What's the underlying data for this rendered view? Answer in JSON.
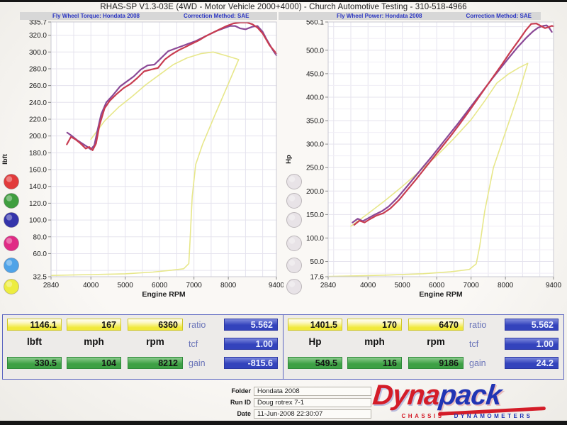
{
  "title": "RHAS-SP V1.3-03E  (4WD - Motor Vehicle 2000+4000) - Church Automotive Testing - 310-518-4966",
  "colors": {
    "header_text": "#2a35c2",
    "table_border": "#5a64c0",
    "box_yellow": "#f1e93a",
    "box_green": "#3da044",
    "box_blue": "#3343bc",
    "box_blue_text": "#eef1ff",
    "param_label": "#6a74b8",
    "logo_red": "#d41c28",
    "logo_blue": "#2134b4"
  },
  "chart_data": [
    {
      "type": "line",
      "panel": "torque",
      "header_title": "Fly Wheel Torque: Hondata 2008",
      "header_method": "Correction Method: SAE",
      "xlabel": "Engine RPM",
      "ylabel": "lbft",
      "xlim": [
        2840,
        9400
      ],
      "ylim": [
        32.5,
        335.7
      ],
      "x_ticks": [
        "2840",
        "4000",
        "5000",
        "6000",
        "7000",
        "8000",
        "9400"
      ],
      "y_ticks": [
        "335.7",
        "320.0",
        "300.0",
        "280.0",
        "260.0",
        "240.0",
        "220.0",
        "200.0",
        "180.0",
        "160.0",
        "140.0",
        "120.0",
        "100.0",
        "80.0",
        "60.0",
        "32.5"
      ],
      "grid": {
        "v_step": 500,
        "h_major": 20,
        "h_minor": 0
      },
      "legend_dots": [
        "#e23b3b",
        "#3f9e3f",
        "#3434ab",
        "#e02b85",
        "#4fa3e8",
        "#eded3f"
      ],
      "series": [
        {
          "name": "aux-channel-torque-yellow",
          "color": "#e7e78a",
          "width": 1.6,
          "points": [
            [
              4000,
              196
            ],
            [
              4400,
              218
            ],
            [
              4800,
              234
            ],
            [
              5200,
              247
            ],
            [
              5600,
              261
            ],
            [
              6000,
              273
            ],
            [
              6400,
              285
            ],
            [
              6800,
              293
            ],
            [
              7200,
              298
            ],
            [
              7560,
              300
            ],
            [
              7900,
              296
            ],
            [
              8150,
              293
            ],
            [
              8300,
              291
            ],
            [
              8000,
              262
            ],
            [
              7600,
              224
            ],
            [
              7250,
              190
            ],
            [
              7050,
              166
            ],
            [
              6950,
              128
            ],
            [
              6890,
              78
            ],
            [
              6850,
              48
            ],
            [
              6700,
              42
            ],
            [
              6300,
              40
            ],
            [
              5800,
              38
            ],
            [
              5000,
              36
            ],
            [
              4000,
              35
            ],
            [
              2840,
              34
            ]
          ]
        },
        {
          "name": "torque-run-2",
          "color": "#8a4896",
          "width": 2.2,
          "points": [
            [
              3310,
              204
            ],
            [
              3450,
              200
            ],
            [
              3600,
              195
            ],
            [
              3750,
              191
            ],
            [
              3900,
              187
            ],
            [
              4000,
              184
            ],
            [
              4100,
              189
            ],
            [
              4200,
              208
            ],
            [
              4300,
              226
            ],
            [
              4450,
              240
            ],
            [
              4650,
              249
            ],
            [
              4850,
              259
            ],
            [
              5050,
              265
            ],
            [
              5250,
              271
            ],
            [
              5450,
              279
            ],
            [
              5650,
              284
            ],
            [
              5850,
              285
            ],
            [
              6050,
              293
            ],
            [
              6250,
              301
            ],
            [
              6450,
              304
            ],
            [
              6650,
              307
            ],
            [
              6850,
              310
            ],
            [
              7050,
              313
            ],
            [
              7250,
              317
            ],
            [
              7450,
              321
            ],
            [
              7650,
              325
            ],
            [
              7850,
              328
            ],
            [
              8050,
              331
            ],
            [
              8200,
              331
            ],
            [
              8350,
              328
            ],
            [
              8500,
              327
            ],
            [
              8700,
              330
            ],
            [
              8850,
              331
            ],
            [
              9000,
              324
            ],
            [
              9100,
              316
            ],
            [
              9200,
              309
            ],
            [
              9300,
              302
            ],
            [
              9400,
              296
            ]
          ]
        },
        {
          "name": "torque-run-1",
          "color": "#c83c50",
          "width": 2.2,
          "points": [
            [
              3300,
              190
            ],
            [
              3420,
              199
            ],
            [
              3550,
              196
            ],
            [
              3700,
              191
            ],
            [
              3850,
              185
            ],
            [
              3950,
              187
            ],
            [
              4050,
              183
            ],
            [
              4150,
              191
            ],
            [
              4250,
              213
            ],
            [
              4400,
              233
            ],
            [
              4550,
              242
            ],
            [
              4750,
              250
            ],
            [
              4950,
              257
            ],
            [
              5150,
              262
            ],
            [
              5350,
              269
            ],
            [
              5550,
              277
            ],
            [
              5750,
              279
            ],
            [
              5950,
              281
            ],
            [
              6150,
              291
            ],
            [
              6350,
              297
            ],
            [
              6550,
              302
            ],
            [
              6750,
              306
            ],
            [
              6950,
              310
            ],
            [
              7150,
              314
            ],
            [
              7350,
              319
            ],
            [
              7550,
              323
            ],
            [
              7750,
              327
            ],
            [
              7950,
              331
            ],
            [
              8150,
              334
            ],
            [
              8350,
              335
            ],
            [
              8550,
              335
            ],
            [
              8700,
              333
            ],
            [
              8850,
              329
            ],
            [
              9000,
              322
            ],
            [
              9100,
              315
            ],
            [
              9200,
              308
            ],
            [
              9300,
              303
            ],
            [
              9400,
              298
            ]
          ]
        }
      ]
    },
    {
      "type": "line",
      "panel": "power",
      "header_title": "Fly Wheel Power: Hondata 2008",
      "header_method": "Correction Method: SAE",
      "xlabel": "Engine RPM",
      "ylabel": "Hp",
      "xlim": [
        2840,
        9400
      ],
      "ylim": [
        17.6,
        560.1
      ],
      "x_ticks": [
        "2840",
        "4000",
        "5000",
        "6000",
        "7000",
        "8000",
        "9400"
      ],
      "y_ticks": [
        "560.1",
        "500.0",
        "450.0",
        "400.0",
        "350.0",
        "300.0",
        "250.0",
        "200.0",
        "150.0",
        "100.0",
        "50.0",
        "17.6"
      ],
      "grid": {
        "v_step": 500,
        "h_major": 50,
        "h_minor": 25
      },
      "legend_dots": [
        "#e8e3e7",
        "#e8e3e7",
        "#e8e3e7",
        "#e8e3e7",
        "#e8e3e7",
        "#e8e3e7"
      ],
      "series": [
        {
          "name": "aux-channel-power-yellow",
          "color": "#e7e78a",
          "width": 1.6,
          "points": [
            [
              3500,
              125
            ],
            [
              4000,
              152
            ],
            [
              4500,
              180
            ],
            [
              5000,
              210
            ],
            [
              5500,
              242
            ],
            [
              6000,
              275
            ],
            [
              6500,
              312
            ],
            [
              7000,
              352
            ],
            [
              7400,
              392
            ],
            [
              7750,
              430
            ],
            [
              8100,
              450
            ],
            [
              8400,
              463
            ],
            [
              8650,
              472
            ],
            [
              8350,
              400
            ],
            [
              8000,
              325
            ],
            [
              7650,
              250
            ],
            [
              7400,
              158
            ],
            [
              7250,
              82
            ],
            [
              7150,
              45
            ],
            [
              6950,
              33
            ],
            [
              6400,
              28
            ],
            [
              5600,
              24
            ],
            [
              4500,
              21
            ],
            [
              2840,
              18
            ]
          ]
        },
        {
          "name": "power-run-2",
          "color": "#8a4896",
          "width": 2.2,
          "points": [
            [
              3550,
              133
            ],
            [
              3700,
              141
            ],
            [
              3850,
              136
            ],
            [
              4000,
              142
            ],
            [
              4200,
              150
            ],
            [
              4400,
              157
            ],
            [
              4600,
              167
            ],
            [
              4850,
              185
            ],
            [
              5100,
              207
            ],
            [
              5350,
              229
            ],
            [
              5600,
              251
            ],
            [
              5850,
              273
            ],
            [
              6100,
              296
            ],
            [
              6350,
              319
            ],
            [
              6600,
              342
            ],
            [
              6850,
              366
            ],
            [
              7100,
              390
            ],
            [
              7350,
              414
            ],
            [
              7600,
              438
            ],
            [
              7850,
              461
            ],
            [
              8100,
              484
            ],
            [
              8350,
              506
            ],
            [
              8600,
              526
            ],
            [
              8800,
              540
            ],
            [
              8950,
              548
            ],
            [
              9100,
              552
            ],
            [
              9200,
              553
            ],
            [
              9280,
              547
            ],
            [
              9350,
              539
            ]
          ]
        },
        {
          "name": "power-run-1",
          "color": "#c83c50",
          "width": 2.2,
          "points": [
            [
              3600,
              128
            ],
            [
              3750,
              137
            ],
            [
              3900,
              133
            ],
            [
              4050,
              140
            ],
            [
              4250,
              148
            ],
            [
              4450,
              153
            ],
            [
              4650,
              163
            ],
            [
              4900,
              181
            ],
            [
              5150,
              203
            ],
            [
              5400,
              225
            ],
            [
              5650,
              248
            ],
            [
              5900,
              271
            ],
            [
              6150,
              294
            ],
            [
              6400,
              317
            ],
            [
              6650,
              341
            ],
            [
              6900,
              366
            ],
            [
              7150,
              392
            ],
            [
              7400,
              418
            ],
            [
              7650,
              444
            ],
            [
              7900,
              470
            ],
            [
              8150,
              497
            ],
            [
              8400,
              522
            ],
            [
              8600,
              543
            ],
            [
              8750,
              556
            ],
            [
              8900,
              557
            ],
            [
              9050,
              551
            ],
            [
              9150,
              547
            ],
            [
              9250,
              549
            ],
            [
              9350,
              552
            ],
            [
              9400,
              551
            ]
          ]
        }
      ]
    }
  ],
  "results": {
    "left": {
      "values_top": [
        "1146.1",
        "167",
        "6360"
      ],
      "units": [
        "lbft",
        "mph",
        "rpm"
      ],
      "values_bottom": [
        "330.5",
        "104",
        "8212"
      ],
      "params": [
        {
          "label": "ratio",
          "value": "5.562"
        },
        {
          "label": "tcf",
          "value": "1.00"
        },
        {
          "label": "gain",
          "value": "-815.6"
        }
      ]
    },
    "right": {
      "values_top": [
        "1401.5",
        "170",
        "6470"
      ],
      "units": [
        "Hp",
        "mph",
        "rpm"
      ],
      "values_bottom": [
        "549.5",
        "116",
        "9186"
      ],
      "params": [
        {
          "label": "ratio",
          "value": "5.562"
        },
        {
          "label": "tcf",
          "value": "1.00"
        },
        {
          "label": "gain",
          "value": "24.2"
        }
      ]
    }
  },
  "footer": {
    "fields": [
      {
        "label": "Folder",
        "value": "Hondata 2008"
      },
      {
        "label": "Run ID",
        "value": "Doug rotrex 7-1"
      },
      {
        "label": "Date",
        "value": "11-Jun-2008  22:30:07"
      }
    ],
    "logo": {
      "main1": "Dyna",
      "main2": "pack",
      "sub1": "CHASSIS",
      "sub2": "DYNAMOMETERS"
    }
  }
}
